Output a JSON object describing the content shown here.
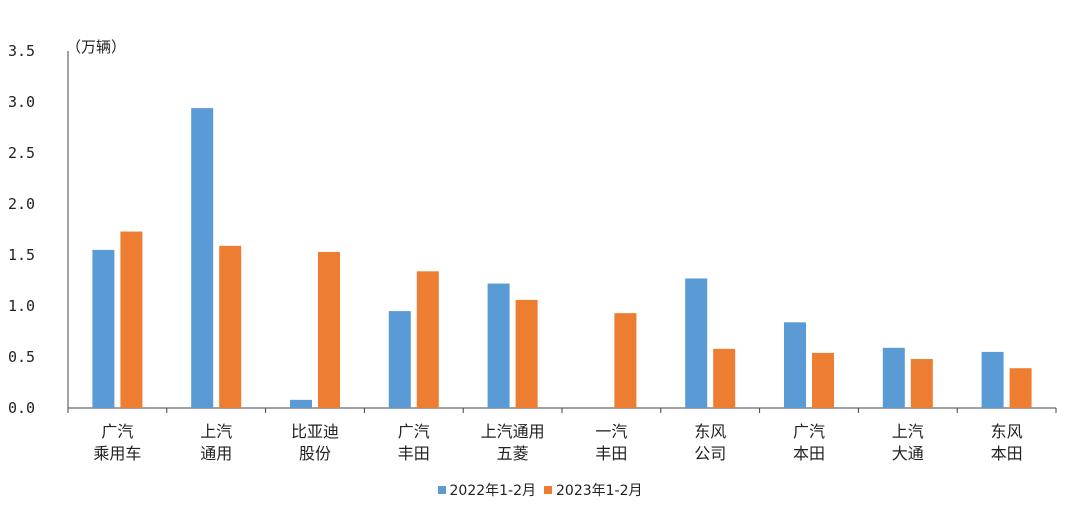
{
  "chart_data": {
    "type": "bar",
    "unit_label": "（万辆）",
    "categories": [
      [
        "广汽",
        "乘用车"
      ],
      [
        "上汽",
        "通用"
      ],
      [
        "比亚迪",
        "股份"
      ],
      [
        "广汽",
        "丰田"
      ],
      [
        "上汽通用",
        "五菱"
      ],
      [
        "一汽",
        "丰田"
      ],
      [
        "东风",
        "公司"
      ],
      [
        "广汽",
        "本田"
      ],
      [
        "上汽",
        "大通"
      ],
      [
        "东风",
        "本田"
      ]
    ],
    "series": [
      {
        "name": "2022年1-2月",
        "color": "#5b9bd5",
        "values": [
          1.55,
          2.94,
          0.08,
          0.95,
          1.22,
          0.0,
          1.27,
          0.84,
          0.59,
          0.55
        ]
      },
      {
        "name": "2023年1-2月",
        "color": "#ed7d31",
        "values": [
          1.73,
          1.59,
          1.53,
          1.34,
          1.06,
          0.93,
          0.58,
          0.54,
          0.48,
          0.39
        ]
      }
    ],
    "y_ticks": [
      "0.0",
      "0.5",
      "1.0",
      "1.5",
      "2.0",
      "2.5",
      "3.0",
      "3.5"
    ],
    "ylim": [
      0,
      3.5
    ],
    "grid": false,
    "legend_position": "bottom"
  }
}
